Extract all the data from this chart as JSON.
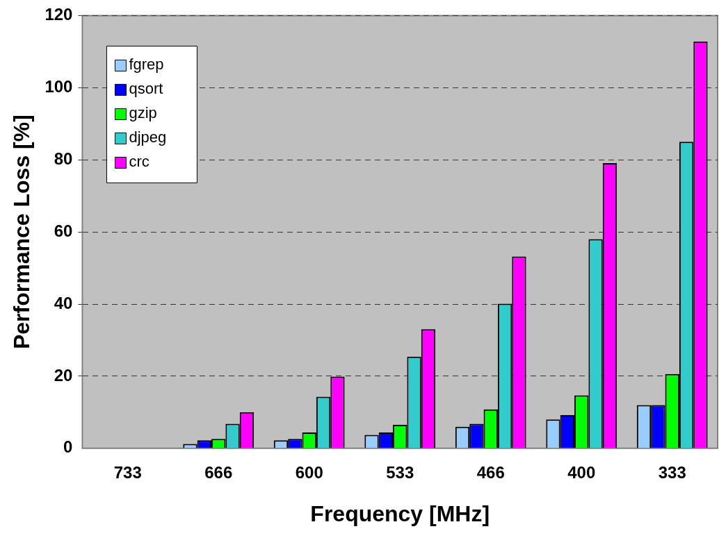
{
  "chart_data": {
    "type": "bar",
    "xlabel": "Frequency [MHz]",
    "ylabel": "Performance Loss [%]",
    "categories": [
      "733",
      "666",
      "600",
      "533",
      "466",
      "400",
      "333"
    ],
    "series": [
      {
        "name": "fgrep",
        "color": "#99ccff",
        "values": [
          0,
          1.2,
          2.2,
          3.7,
          6,
          8,
          12
        ]
      },
      {
        "name": "qsort",
        "color": "#0000ff",
        "values": [
          0,
          2.2,
          2.6,
          4.4,
          6.8,
          9.2,
          12
        ]
      },
      {
        "name": "gzip",
        "color": "#00ff00",
        "values": [
          0,
          2.6,
          4.4,
          6.5,
          10.8,
          14.7,
          20.6
        ]
      },
      {
        "name": "djpeg",
        "color": "#33cccc",
        "values": [
          0,
          6.8,
          14.3,
          25.4,
          40.1,
          58,
          85
        ]
      },
      {
        "name": "crc",
        "color": "#ff00ff",
        "values": [
          0,
          10,
          19.9,
          33,
          53.2,
          79.1,
          112.8
        ]
      }
    ],
    "ylim": [
      0,
      120
    ],
    "yticks": [
      0,
      20,
      40,
      60,
      80,
      100,
      120
    ],
    "grid": "y",
    "legend": "top left"
  }
}
